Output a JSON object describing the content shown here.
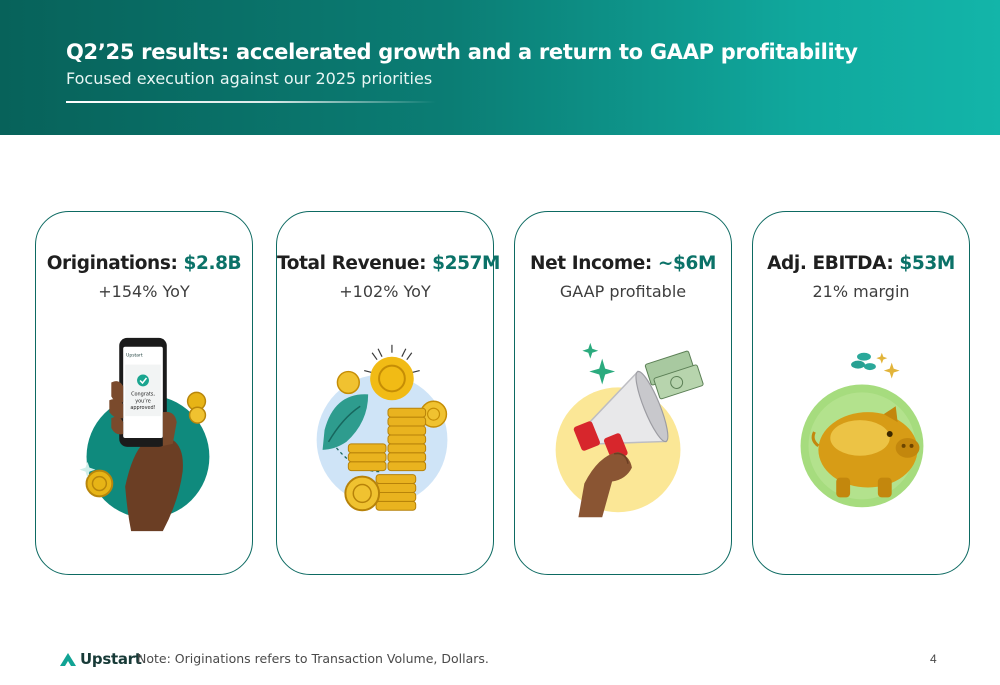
{
  "header": {
    "title": "Q2’25 results: accelerated growth and a return to GAAP profitability",
    "subtitle": "Focused execution against our 2025 priorities"
  },
  "cards": [
    {
      "label": "Originations:",
      "value": "$2.8B",
      "sub": "+154% YoY",
      "illustration": "hand-holding-phone"
    },
    {
      "label": "Total Revenue:",
      "value": "$257M",
      "sub": "+102% YoY",
      "illustration": "coin-stacks"
    },
    {
      "label": "Net Income:",
      "value": "~$6M",
      "sub": "GAAP profitable",
      "illustration": "megaphone-with-cash"
    },
    {
      "label": "Adj. EBITDA:",
      "value": "$53M",
      "sub": "21% margin",
      "illustration": "gold-piggy-bank"
    }
  ],
  "phone": {
    "app_name": "Upstart",
    "message": [
      "Congrats,",
      "you’re",
      "approved!"
    ]
  },
  "footer": {
    "logo_text": "Upstart",
    "note": "Note: Originations refers to Transaction Volume, Dollars.",
    "page_number": "4"
  },
  "colors": {
    "accent": "#0b7268",
    "banner_dark": "#07625a",
    "banner_light": "#13b5a9",
    "card_border": "#0d6a62"
  }
}
